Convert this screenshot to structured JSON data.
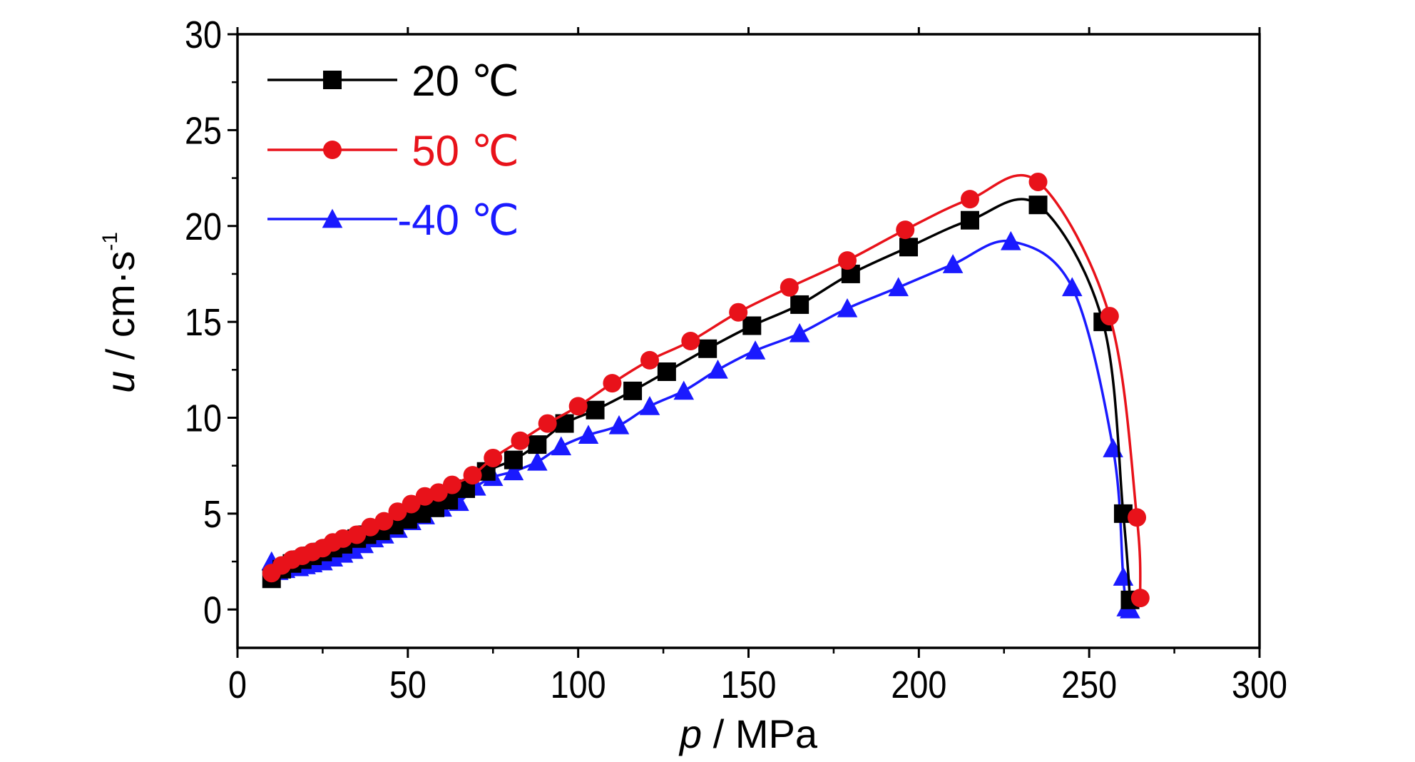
{
  "chart_data": {
    "type": "line",
    "xlabel": {
      "var": "p",
      "rest": " / MPa"
    },
    "ylabel": {
      "var": "u",
      "rest": " / cm·s",
      "sup": "-1"
    },
    "xlim": [
      0,
      300
    ],
    "ylim": [
      -2,
      30
    ],
    "x_ticks": [
      0,
      50,
      100,
      150,
      200,
      250,
      300
    ],
    "y_ticks": [
      0,
      5,
      10,
      15,
      20,
      25,
      30
    ],
    "grid": false,
    "legend_position": "top-left",
    "series": [
      {
        "name": "20 ℃",
        "color": "#000000",
        "marker": "square",
        "x": [
          10,
          13,
          16,
          19,
          22,
          25,
          28,
          31,
          35,
          38,
          42,
          46,
          50,
          54,
          58,
          62,
          67,
          73,
          81,
          88,
          96,
          105,
          116,
          126,
          138,
          151,
          165,
          180,
          197,
          215,
          235,
          254,
          260,
          262
        ],
        "y": [
          1.6,
          2.1,
          2.4,
          2.6,
          2.8,
          3.0,
          3.2,
          3.4,
          3.7,
          3.9,
          4.1,
          4.4,
          4.7,
          5.0,
          5.3,
          5.7,
          6.3,
          7.2,
          7.8,
          8.6,
          9.7,
          10.4,
          11.4,
          12.4,
          13.6,
          14.8,
          15.9,
          17.5,
          18.9,
          20.3,
          21.1,
          15.0,
          5.0,
          0.5
        ]
      },
      {
        "name": "50 ℃",
        "color": "#e8121a",
        "marker": "circle",
        "x": [
          10,
          13,
          16,
          19,
          22,
          25,
          28,
          31,
          35,
          39,
          43,
          47,
          51,
          55,
          59,
          63,
          69,
          75,
          83,
          91,
          100,
          110,
          121,
          133,
          147,
          162,
          179,
          196,
          215,
          235,
          256,
          264,
          265
        ],
        "y": [
          1.9,
          2.3,
          2.6,
          2.8,
          3.0,
          3.2,
          3.5,
          3.7,
          3.9,
          4.3,
          4.6,
          5.1,
          5.5,
          5.9,
          6.1,
          6.5,
          7.0,
          7.9,
          8.8,
          9.7,
          10.6,
          11.8,
          13.0,
          14.0,
          15.5,
          16.8,
          18.2,
          19.8,
          21.4,
          22.3,
          15.3,
          4.8,
          0.6
        ]
      },
      {
        "name": "-40 ℃",
        "color": "#1a1aff",
        "marker": "triangle",
        "x": [
          10,
          12,
          14,
          16,
          18,
          20,
          22,
          25,
          28,
          31,
          34,
          37,
          40,
          43,
          47,
          51,
          55,
          60,
          65,
          70,
          75,
          81,
          88,
          95,
          103,
          112,
          121,
          131,
          141,
          152,
          165,
          179,
          194,
          210,
          227,
          245,
          257,
          260,
          261,
          262
        ],
        "y": [
          2.5,
          2.0,
          2.1,
          2.2,
          2.2,
          2.3,
          2.4,
          2.5,
          2.7,
          2.9,
          3.1,
          3.4,
          3.7,
          3.9,
          4.2,
          4.6,
          4.9,
          5.3,
          5.6,
          6.4,
          6.9,
          7.2,
          7.7,
          8.5,
          9.1,
          9.6,
          10.6,
          11.4,
          12.5,
          13.5,
          14.4,
          15.7,
          16.8,
          18.0,
          19.2,
          16.8,
          8.4,
          1.7,
          0.1,
          0.0
        ]
      }
    ]
  }
}
